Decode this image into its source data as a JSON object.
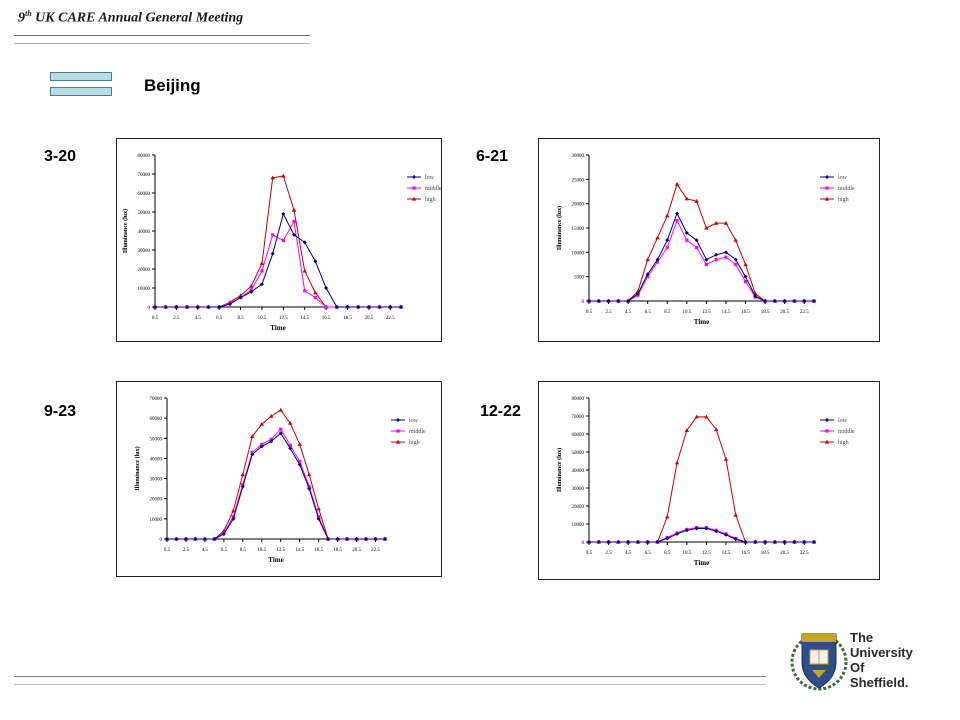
{
  "header": {
    "title_prefix": "9",
    "title_sup": "th",
    "title_rest": "UK CARE Annual General Meeting"
  },
  "city": "Beijing",
  "legend_labels": [
    "low",
    "middle",
    "high"
  ],
  "colors": {
    "low": "#000080",
    "middle": "#ff00ff",
    "high": "#cc0000"
  },
  "logo": {
    "lines": [
      "The",
      "University",
      "Of",
      "Sheffield."
    ]
  },
  "chart_data": [
    {
      "type": "line",
      "panel_label": "3-20",
      "xlabel": "Time",
      "ylabel": "Illuminance (lux)",
      "ylim": [
        0,
        80000
      ],
      "yticks": [
        "0",
        "10000",
        "20000",
        "30000",
        "40000",
        "50000",
        "60000",
        "70000",
        "80000"
      ],
      "xticks": [
        "0.5",
        "2.5",
        "4.5",
        "6.5",
        "8.5",
        "10.5",
        "12.5",
        "14.5",
        "16.5",
        "18.5",
        "20.5",
        "22.5"
      ],
      "x": [
        0.5,
        1.5,
        2.5,
        3.5,
        4.5,
        5.5,
        6.5,
        7.5,
        8.5,
        9.5,
        10.5,
        11.5,
        12.5,
        13.5,
        14.5,
        15.5,
        16.5,
        17.5,
        18.5,
        19.5,
        20.5,
        21.5,
        22.5,
        23.5
      ],
      "series": [
        {
          "name": "low",
          "values": [
            0,
            0,
            0,
            0,
            0,
            0,
            0,
            1500,
            5000,
            8000,
            12000,
            28000,
            49000,
            38000,
            34000,
            24000,
            10000,
            0,
            0,
            0,
            0,
            0,
            0,
            0
          ]
        },
        {
          "name": "middle",
          "values": [
            0,
            0,
            0,
            0,
            0,
            0,
            0,
            2000,
            5000,
            9000,
            19000,
            38000,
            35000,
            45000,
            8500,
            5000,
            0,
            0,
            0,
            0,
            0,
            0,
            0,
            0
          ]
        },
        {
          "name": "high",
          "values": [
            0,
            0,
            0,
            0,
            0,
            0,
            0,
            2500,
            6000,
            11000,
            23000,
            68000,
            69000,
            51000,
            19000,
            7500,
            0,
            0,
            0,
            0,
            0,
            0,
            0,
            0
          ]
        }
      ]
    },
    {
      "type": "line",
      "panel_label": "6-21",
      "xlabel": "Time",
      "ylabel": "Illuminance (lux)",
      "ylim": [
        0,
        30000
      ],
      "yticks": [
        "0",
        "5000",
        "10000",
        "15000",
        "20000",
        "25000",
        "30000"
      ],
      "xticks": [
        "0.5",
        "2.5",
        "4.5",
        "6.5",
        "8.5",
        "10.5",
        "12.5",
        "14.5",
        "16.5",
        "18.5",
        "20.5",
        "22.5"
      ],
      "x": [
        0.5,
        1.5,
        2.5,
        3.5,
        4.5,
        5.5,
        6.5,
        7.5,
        8.5,
        9.5,
        10.5,
        11.5,
        12.5,
        13.5,
        14.5,
        15.5,
        16.5,
        17.5,
        18.5,
        19.5,
        20.5,
        21.5,
        22.5,
        23.5
      ],
      "series": [
        {
          "name": "low",
          "values": [
            0,
            0,
            0,
            0,
            0,
            1500,
            5500,
            8500,
            12500,
            18000,
            14000,
            12500,
            8500,
            9500,
            10000,
            8500,
            5000,
            1000,
            0,
            0,
            0,
            0,
            0,
            0
          ]
        },
        {
          "name": "middle",
          "values": [
            0,
            0,
            0,
            0,
            0,
            1200,
            5000,
            8000,
            11000,
            16500,
            12500,
            11000,
            7500,
            8500,
            9000,
            7500,
            4000,
            800,
            0,
            0,
            0,
            0,
            0,
            0
          ]
        },
        {
          "name": "high",
          "values": [
            0,
            0,
            0,
            0,
            0,
            2000,
            8500,
            13000,
            17500,
            24000,
            21000,
            20500,
            15000,
            16000,
            16000,
            12500,
            7500,
            1500,
            0,
            0,
            0,
            0,
            0,
            0
          ]
        }
      ]
    },
    {
      "type": "line",
      "panel_label": "9-23",
      "xlabel": "Time",
      "ylabel": "Illuminance (lux)",
      "ylim": [
        0,
        70000
      ],
      "yticks": [
        "0",
        "10000",
        "20000",
        "30000",
        "40000",
        "50000",
        "60000",
        "70000"
      ],
      "xticks": [
        "0.5",
        "2.5",
        "4.5",
        "6.5",
        "8.5",
        "10.5",
        "12.5",
        "14.5",
        "16.5",
        "18.5",
        "20.5",
        "22.5"
      ],
      "x": [
        0.5,
        1.5,
        2.5,
        3.5,
        4.5,
        5.5,
        6.5,
        7.5,
        8.5,
        9.5,
        10.5,
        11.5,
        12.5,
        13.5,
        14.5,
        15.5,
        16.5,
        17.5,
        18.5,
        19.5,
        20.5,
        21.5,
        22.5,
        23.5
      ],
      "series": [
        {
          "name": "low",
          "values": [
            0,
            0,
            0,
            0,
            0,
            0,
            2500,
            10000,
            26000,
            42000,
            46000,
            48500,
            52500,
            45000,
            37000,
            25000,
            10000,
            0,
            0,
            0,
            0,
            0,
            0,
            0
          ]
        },
        {
          "name": "middle",
          "values": [
            0,
            0,
            0,
            0,
            0,
            0,
            3000,
            11000,
            27000,
            43000,
            47000,
            49500,
            54500,
            46500,
            38500,
            26000,
            11000,
            0,
            0,
            0,
            0,
            0,
            0,
            0
          ]
        },
        {
          "name": "high",
          "values": [
            0,
            0,
            0,
            0,
            0,
            0,
            4000,
            14000,
            32000,
            51000,
            57000,
            61000,
            64000,
            57500,
            47000,
            32000,
            15000,
            0,
            0,
            0,
            0,
            0,
            0,
            0
          ]
        }
      ]
    },
    {
      "type": "line",
      "panel_label": "12-22",
      "xlabel": "Time",
      "ylabel": "Illuminance (lux)",
      "ylim": [
        0,
        80000
      ],
      "yticks": [
        "0",
        "10000",
        "20000",
        "30000",
        "40000",
        "50000",
        "60000",
        "70000",
        "80000"
      ],
      "xticks": [
        "0.5",
        "2.5",
        "4.5",
        "6.5",
        "8.5",
        "10.5",
        "12.5",
        "14.5",
        "16.5",
        "18.5",
        "20.5",
        "22.5"
      ],
      "x": [
        0.5,
        1.5,
        2.5,
        3.5,
        4.5,
        5.5,
        6.5,
        7.5,
        8.5,
        9.5,
        10.5,
        11.5,
        12.5,
        13.5,
        14.5,
        15.5,
        16.5,
        17.5,
        18.5,
        19.5,
        20.5,
        21.5,
        22.5,
        23.5
      ],
      "series": [
        {
          "name": "low",
          "values": [
            0,
            0,
            0,
            0,
            0,
            0,
            0,
            0,
            2000,
            4500,
            6500,
            7500,
            7500,
            6000,
            4000,
            1500,
            0,
            0,
            0,
            0,
            0,
            0,
            0,
            0
          ]
        },
        {
          "name": "middle",
          "values": [
            0,
            0,
            0,
            0,
            0,
            0,
            0,
            0,
            2500,
            5000,
            7000,
            8000,
            8000,
            6500,
            4500,
            2000,
            0,
            0,
            0,
            0,
            0,
            0,
            0,
            0
          ]
        },
        {
          "name": "high",
          "values": [
            0,
            0,
            0,
            0,
            0,
            0,
            0,
            0,
            14000,
            44000,
            62000,
            69500,
            69500,
            62500,
            46000,
            15000,
            0,
            0,
            0,
            0,
            0,
            0,
            0,
            0
          ]
        }
      ]
    }
  ]
}
